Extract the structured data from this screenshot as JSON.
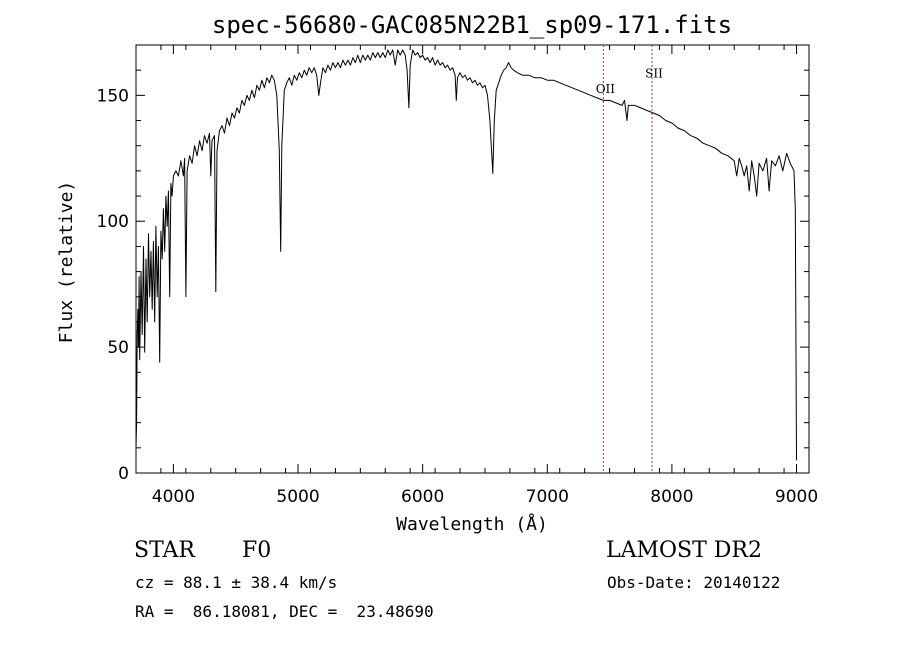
{
  "chart_data": {
    "type": "line",
    "title": "spec-56680-GAC085N22B1_sp09-171.fits",
    "xlabel": "Wavelength (Å)",
    "ylabel": "Flux (relative)",
    "xlim": [
      3700,
      9100
    ],
    "ylim": [
      0,
      170
    ],
    "xticks": [
      {
        "value": 4000,
        "label": "4000"
      },
      {
        "value": 5000,
        "label": "5000"
      },
      {
        "value": 6000,
        "label": "6000"
      },
      {
        "value": 7000,
        "label": "7000"
      },
      {
        "value": 8000,
        "label": "8000"
      },
      {
        "value": 9000,
        "label": "9000"
      }
    ],
    "yticks": [
      {
        "value": 0,
        "label": "0"
      },
      {
        "value": 50,
        "label": "50"
      },
      {
        "value": 100,
        "label": "100"
      },
      {
        "value": 150,
        "label": "150"
      }
    ],
    "series": [
      {
        "color": "#000000",
        "points": [
          [
            3700,
            10
          ],
          [
            3705,
            20
          ],
          [
            3710,
            55
          ],
          [
            3715,
            65
          ],
          [
            3720,
            50
          ],
          [
            3725,
            78
          ],
          [
            3730,
            45
          ],
          [
            3740,
            80
          ],
          [
            3750,
            55
          ],
          [
            3760,
            90
          ],
          [
            3770,
            48
          ],
          [
            3780,
            85
          ],
          [
            3790,
            60
          ],
          [
            3800,
            95
          ],
          [
            3810,
            70
          ],
          [
            3820,
            88
          ],
          [
            3830,
            65
          ],
          [
            3840,
            92
          ],
          [
            3850,
            60
          ],
          [
            3860,
            98
          ],
          [
            3870,
            70
          ],
          [
            3880,
            90
          ],
          [
            3890,
            44
          ],
          [
            3900,
            96
          ],
          [
            3910,
            85
          ],
          [
            3920,
            105
          ],
          [
            3930,
            88
          ],
          [
            3940,
            110
          ],
          [
            3950,
            98
          ],
          [
            3960,
            112
          ],
          [
            3970,
            70
          ],
          [
            3980,
            115
          ],
          [
            3990,
            110
          ],
          [
            4000,
            118
          ],
          [
            4020,
            120
          ],
          [
            4040,
            118
          ],
          [
            4060,
            124
          ],
          [
            4080,
            118
          ],
          [
            4090,
            125
          ],
          [
            4100,
            70
          ],
          [
            4110,
            120
          ],
          [
            4130,
            126
          ],
          [
            4150,
            123
          ],
          [
            4170,
            130
          ],
          [
            4190,
            126
          ],
          [
            4210,
            132
          ],
          [
            4230,
            128
          ],
          [
            4250,
            134
          ],
          [
            4270,
            131
          ],
          [
            4290,
            135
          ],
          [
            4300,
            118
          ],
          [
            4310,
            132
          ],
          [
            4330,
            134
          ],
          [
            4340,
            72
          ],
          [
            4350,
            128
          ],
          [
            4370,
            136
          ],
          [
            4390,
            138
          ],
          [
            4410,
            135
          ],
          [
            4430,
            141
          ],
          [
            4450,
            138
          ],
          [
            4470,
            143
          ],
          [
            4490,
            141
          ],
          [
            4510,
            145
          ],
          [
            4530,
            143
          ],
          [
            4550,
            148
          ],
          [
            4570,
            146
          ],
          [
            4590,
            150
          ],
          [
            4610,
            148
          ],
          [
            4630,
            152
          ],
          [
            4650,
            149
          ],
          [
            4670,
            154
          ],
          [
            4690,
            152
          ],
          [
            4710,
            156
          ],
          [
            4730,
            153
          ],
          [
            4750,
            157
          ],
          [
            4770,
            155
          ],
          [
            4790,
            158
          ],
          [
            4810,
            156
          ],
          [
            4830,
            150
          ],
          [
            4850,
            128
          ],
          [
            4861,
            88
          ],
          [
            4870,
            130
          ],
          [
            4890,
            152
          ],
          [
            4910,
            155
          ],
          [
            4930,
            157
          ],
          [
            4950,
            154
          ],
          [
            4970,
            158
          ],
          [
            4990,
            156
          ],
          [
            5010,
            159
          ],
          [
            5030,
            157
          ],
          [
            5050,
            160
          ],
          [
            5070,
            158
          ],
          [
            5090,
            161
          ],
          [
            5110,
            159
          ],
          [
            5130,
            161
          ],
          [
            5150,
            158
          ],
          [
            5167,
            150
          ],
          [
            5180,
            155
          ],
          [
            5200,
            161
          ],
          [
            5220,
            159
          ],
          [
            5240,
            162
          ],
          [
            5260,
            160
          ],
          [
            5280,
            163
          ],
          [
            5300,
            161
          ],
          [
            5320,
            163
          ],
          [
            5340,
            161
          ],
          [
            5360,
            164
          ],
          [
            5380,
            162
          ],
          [
            5400,
            164
          ],
          [
            5420,
            162
          ],
          [
            5440,
            165
          ],
          [
            5460,
            163
          ],
          [
            5480,
            166
          ],
          [
            5500,
            163
          ],
          [
            5520,
            166
          ],
          [
            5540,
            164
          ],
          [
            5560,
            166
          ],
          [
            5580,
            164
          ],
          [
            5600,
            167
          ],
          [
            5620,
            165
          ],
          [
            5640,
            167
          ],
          [
            5660,
            165
          ],
          [
            5680,
            167
          ],
          [
            5700,
            165
          ],
          [
            5720,
            168
          ],
          [
            5740,
            166
          ],
          [
            5760,
            168
          ],
          [
            5780,
            162
          ],
          [
            5800,
            168
          ],
          [
            5820,
            166
          ],
          [
            5840,
            168
          ],
          [
            5860,
            166
          ],
          [
            5875,
            160
          ],
          [
            5890,
            145
          ],
          [
            5900,
            162
          ],
          [
            5920,
            168
          ],
          [
            5940,
            166
          ],
          [
            5960,
            167
          ],
          [
            5980,
            165
          ],
          [
            6000,
            166
          ],
          [
            6020,
            164
          ],
          [
            6040,
            165
          ],
          [
            6060,
            163
          ],
          [
            6080,
            165
          ],
          [
            6100,
            162
          ],
          [
            6120,
            164
          ],
          [
            6140,
            162
          ],
          [
            6160,
            163
          ],
          [
            6180,
            161
          ],
          [
            6200,
            162
          ],
          [
            6220,
            160
          ],
          [
            6240,
            161
          ],
          [
            6260,
            158
          ],
          [
            6270,
            148
          ],
          [
            6280,
            157
          ],
          [
            6300,
            159
          ],
          [
            6320,
            157
          ],
          [
            6340,
            158
          ],
          [
            6360,
            156
          ],
          [
            6380,
            157
          ],
          [
            6400,
            155
          ],
          [
            6420,
            156
          ],
          [
            6440,
            154
          ],
          [
            6460,
            155
          ],
          [
            6480,
            153
          ],
          [
            6500,
            154
          ],
          [
            6520,
            150
          ],
          [
            6540,
            140
          ],
          [
            6563,
            119
          ],
          [
            6575,
            140
          ],
          [
            6590,
            152
          ],
          [
            6610,
            155
          ],
          [
            6630,
            158
          ],
          [
            6650,
            160
          ],
          [
            6670,
            161
          ],
          [
            6690,
            163
          ],
          [
            6710,
            161
          ],
          [
            6730,
            160
          ],
          [
            6760,
            159
          ],
          [
            6800,
            158
          ],
          [
            6850,
            158
          ],
          [
            6900,
            157
          ],
          [
            6950,
            157
          ],
          [
            7000,
            156
          ],
          [
            7050,
            156
          ],
          [
            7100,
            155
          ],
          [
            7150,
            154
          ],
          [
            7200,
            153
          ],
          [
            7250,
            152
          ],
          [
            7300,
            151
          ],
          [
            7350,
            150
          ],
          [
            7400,
            149
          ],
          [
            7450,
            148
          ],
          [
            7500,
            148
          ],
          [
            7550,
            147
          ],
          [
            7600,
            146
          ],
          [
            7620,
            148
          ],
          [
            7640,
            140
          ],
          [
            7650,
            146
          ],
          [
            7700,
            146
          ],
          [
            7750,
            145
          ],
          [
            7800,
            144
          ],
          [
            7850,
            143
          ],
          [
            7900,
            142
          ],
          [
            7950,
            140
          ],
          [
            8000,
            139
          ],
          [
            8050,
            137
          ],
          [
            8100,
            136
          ],
          [
            8150,
            134
          ],
          [
            8200,
            133
          ],
          [
            8250,
            131
          ],
          [
            8300,
            130
          ],
          [
            8350,
            129
          ],
          [
            8400,
            127
          ],
          [
            8450,
            126
          ],
          [
            8500,
            124
          ],
          [
            8520,
            118
          ],
          [
            8540,
            125
          ],
          [
            8560,
            122
          ],
          [
            8580,
            118
          ],
          [
            8600,
            122
          ],
          [
            8620,
            112
          ],
          [
            8640,
            124
          ],
          [
            8660,
            118
          ],
          [
            8680,
            110
          ],
          [
            8700,
            123
          ],
          [
            8730,
            120
          ],
          [
            8760,
            125
          ],
          [
            8780,
            112
          ],
          [
            8800,
            124
          ],
          [
            8830,
            122
          ],
          [
            8860,
            126
          ],
          [
            8890,
            120
          ],
          [
            8920,
            127
          ],
          [
            8950,
            123
          ],
          [
            8980,
            120
          ],
          [
            8990,
            105
          ],
          [
            9000,
            5
          ]
        ]
      }
    ],
    "annotations": [
      {
        "x": 7450,
        "label": "OII",
        "label_y": 151
      },
      {
        "x": 7840,
        "label": "SII",
        "label_y": 157
      }
    ]
  },
  "info": {
    "class_label": "STAR",
    "subclass_label": "F0",
    "survey_label": "LAMOST DR2",
    "cz_line": "cz = 88.1 ± 38.4 km/s",
    "obs_date_line": "Obs-Date: 20140122",
    "coords_line": "RA =  86.18081, DEC =  23.48690"
  }
}
